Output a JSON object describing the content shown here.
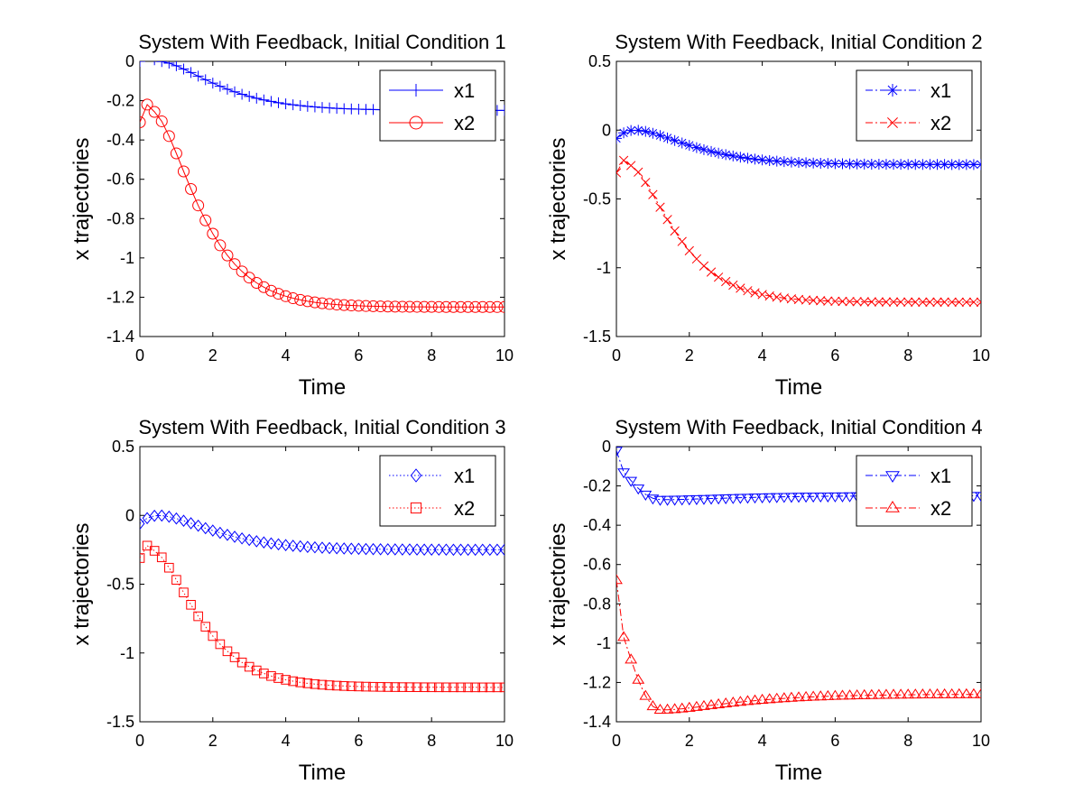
{
  "chart_data": [
    {
      "type": "line",
      "title": "System With Feedback, Initial Condition 1",
      "xlabel": "Time",
      "ylabel": "x trajectories",
      "xlim": [
        0,
        10
      ],
      "ylim": [
        -1.4,
        0
      ],
      "xticks": [
        0,
        2,
        4,
        6,
        8,
        10
      ],
      "yticks": [
        -1.4,
        -1.2,
        -1,
        -0.8,
        -0.6,
        -0.4,
        -0.2,
        0
      ],
      "ytick_labels": [
        "-1.4",
        "-1.2",
        "-1",
        "-0.8",
        "-0.6",
        "-0.4",
        "-0.2",
        "0"
      ],
      "grid": false,
      "legend_position": "top-right",
      "series": [
        {
          "name": "x1",
          "color": "#0000ff",
          "line_style": "solid",
          "marker": "plus",
          "x0": 0,
          "x1": 0.06,
          "x_peak": 0.5,
          "y_peak": 0,
          "y_final": -0.25,
          "tau": 1.0
        },
        {
          "name": "x2",
          "color": "#ff0000",
          "line_style": "solid",
          "marker": "circle",
          "x0": -0.31,
          "x1": -0.22,
          "x_peak": 0.3,
          "y_peak": -0.25,
          "y_final": -1.25,
          "tau": 0.8
        }
      ]
    },
    {
      "type": "line",
      "title": "System With Feedback, Initial Condition 2",
      "xlabel": "Time",
      "ylabel": "x trajectories",
      "xlim": [
        0,
        10
      ],
      "ylim": [
        -1.5,
        0.5
      ],
      "xticks": [
        0,
        2,
        4,
        6,
        8,
        10
      ],
      "yticks": [
        -1.5,
        -1,
        -0.5,
        0,
        0.5
      ],
      "ytick_labels": [
        "-1.5",
        "-1",
        "-0.5",
        "0",
        "0.5"
      ],
      "grid": false,
      "legend_position": "top-right",
      "series": [
        {
          "name": "x1",
          "color": "#0000ff",
          "line_style": "dashdot",
          "marker": "asterisk",
          "x0": -0.06,
          "x1": -0.02,
          "x_peak": 0.5,
          "y_peak": 0,
          "y_final": -0.25,
          "tau": 1.0
        },
        {
          "name": "x2",
          "color": "#ff0000",
          "line_style": "dashdot",
          "marker": "cross",
          "x0": -0.31,
          "x1": -0.22,
          "x_peak": 0.3,
          "y_peak": -0.25,
          "y_final": -1.25,
          "tau": 0.8
        }
      ]
    },
    {
      "type": "line",
      "title": "System With Feedback, Initial Condition 3",
      "xlabel": "Time",
      "ylabel": "x trajectories",
      "xlim": [
        0,
        10
      ],
      "ylim": [
        -1.5,
        0.5
      ],
      "xticks": [
        0,
        2,
        4,
        6,
        8,
        10
      ],
      "yticks": [
        -1.5,
        -1,
        -0.5,
        0,
        0.5
      ],
      "ytick_labels": [
        "-1.5",
        "-1",
        "-0.5",
        "0",
        "0.5"
      ],
      "grid": false,
      "legend_position": "top-right",
      "series": [
        {
          "name": "x1",
          "color": "#0000ff",
          "line_style": "dotted",
          "marker": "diamond",
          "x0": -0.06,
          "x1": -0.02,
          "x_peak": 0.5,
          "y_peak": 0,
          "y_final": -0.25,
          "tau": 1.0
        },
        {
          "name": "x2",
          "color": "#ff0000",
          "line_style": "dotted",
          "marker": "square",
          "x0": -0.31,
          "x1": -0.22,
          "x_peak": 0.3,
          "y_peak": -0.25,
          "y_final": -1.25,
          "tau": 0.8
        }
      ]
    },
    {
      "type": "line",
      "title": "System With Feedback, Initial Condition 4",
      "xlabel": "Time",
      "ylabel": "x trajectories",
      "xlim": [
        0,
        10
      ],
      "ylim": [
        -1.4,
        0
      ],
      "xticks": [
        0,
        2,
        4,
        6,
        8,
        10
      ],
      "yticks": [
        -1.4,
        -1.2,
        -1,
        -0.8,
        -0.6,
        -0.4,
        -0.2,
        0
      ],
      "ytick_labels": [
        "-1.4",
        "-1.2",
        "-1",
        "-0.8",
        "-0.6",
        "-0.4",
        "-0.2",
        "0"
      ],
      "grid": false,
      "legend_position": "top-right",
      "series": [
        {
          "name": "x1",
          "color": "#0000ff",
          "line_style": "dashdot",
          "marker": "triangle-down",
          "x0": -0.02,
          "x1": -0.13,
          "x_peak": 1.2,
          "y_peak": -0.27,
          "y_final": -0.25,
          "tau": 1.3
        },
        {
          "name": "x2",
          "color": "#ff0000",
          "line_style": "dashdot",
          "marker": "triangle-up",
          "x0": -0.68,
          "x1": -0.97,
          "x_peak": 1.2,
          "y_peak": -1.34,
          "y_final": -1.26,
          "tau": 1.3
        }
      ]
    }
  ]
}
